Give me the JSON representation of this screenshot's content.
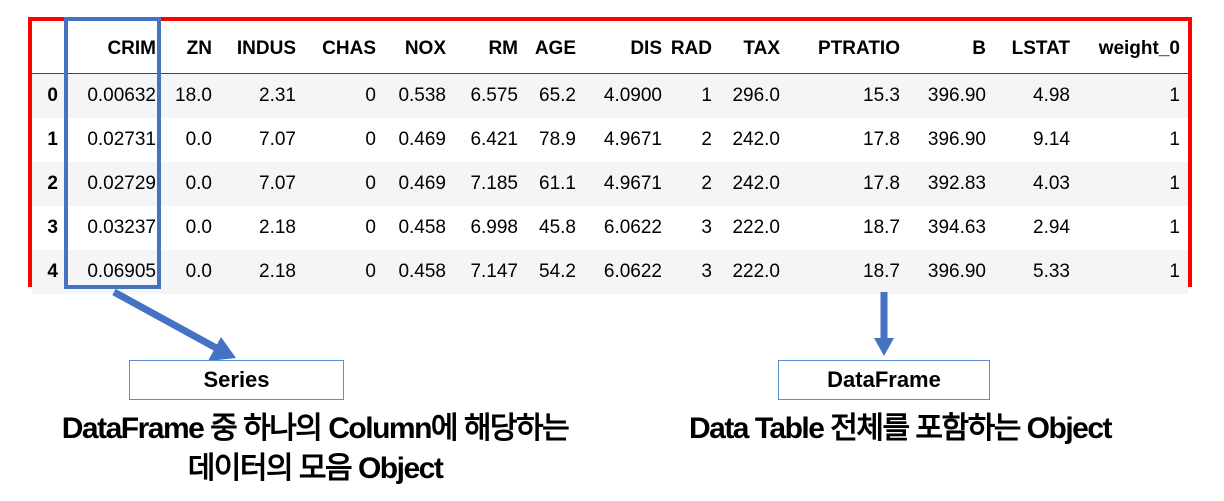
{
  "table": {
    "columns": [
      "",
      "CRIM",
      "ZN",
      "INDUS",
      "CHAS",
      "NOX",
      "RM",
      "AGE",
      "DIS",
      "RAD",
      "TAX",
      "PTRATIO",
      "B",
      "LSTAT",
      "weight_0"
    ],
    "rows": [
      [
        "0",
        "0.00632",
        "18.0",
        "2.31",
        "0",
        "0.538",
        "6.575",
        "65.2",
        "4.0900",
        "1",
        "296.0",
        "15.3",
        "396.90",
        "4.98",
        "1"
      ],
      [
        "1",
        "0.02731",
        "0.0",
        "7.07",
        "0",
        "0.469",
        "6.421",
        "78.9",
        "4.9671",
        "2",
        "242.0",
        "17.8",
        "396.90",
        "9.14",
        "1"
      ],
      [
        "2",
        "0.02729",
        "0.0",
        "7.07",
        "0",
        "0.469",
        "7.185",
        "61.1",
        "4.9671",
        "2",
        "242.0",
        "17.8",
        "392.83",
        "4.03",
        "1"
      ],
      [
        "3",
        "0.03237",
        "0.0",
        "2.18",
        "0",
        "0.458",
        "6.998",
        "45.8",
        "6.0622",
        "3",
        "222.0",
        "18.7",
        "394.63",
        "2.94",
        "1"
      ],
      [
        "4",
        "0.06905",
        "0.0",
        "2.18",
        "0",
        "0.458",
        "7.147",
        "54.2",
        "6.0622",
        "3",
        "222.0",
        "18.7",
        "396.90",
        "5.33",
        "1"
      ]
    ]
  },
  "series": {
    "label": "Series",
    "caption_line1": "DataFrame 중 하나의 Column에 해당하는",
    "caption_line2": "데이터의 모음 Object"
  },
  "dataframe": {
    "label": "DataFrame",
    "caption": "Data Table 전체를 포함하는 Object"
  },
  "colors": {
    "dataframe_border": "#ff0000",
    "series_border": "#4472c4",
    "arrow": "#4472c4"
  }
}
